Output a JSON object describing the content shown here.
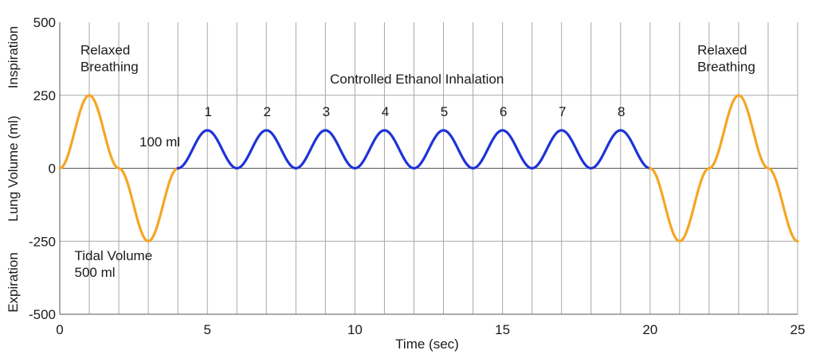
{
  "chart_data": {
    "type": "line",
    "xlabel": "Time (sec)",
    "ylabel": "Lung Volume (ml)",
    "ylabel_top": "Inspiration",
    "ylabel_bottom": "Expiration",
    "xlim": [
      0,
      25
    ],
    "ylim": [
      -500,
      500
    ],
    "x_ticks": [
      0,
      5,
      10,
      15,
      20,
      25
    ],
    "y_ticks": [
      500,
      250,
      0,
      -250,
      -500
    ],
    "vertical_grid_every": 1,
    "horizontal_grid": [
      250,
      0,
      -250
    ],
    "series": [
      {
        "color": "#f5a623",
        "x": [
          0,
          1,
          2,
          3,
          4
        ],
        "y": [
          0,
          250,
          0,
          -250,
          0
        ]
      },
      {
        "color": "#1f33d6",
        "x": [
          4,
          5,
          6,
          7,
          8,
          9,
          10,
          11,
          12,
          13,
          14,
          15,
          16,
          17,
          18,
          19,
          20
        ],
        "y": [
          0,
          130,
          0,
          130,
          0,
          130,
          0,
          130,
          0,
          130,
          0,
          130,
          0,
          130,
          0,
          130,
          0
        ]
      },
      {
        "color": "#f5a623",
        "x": [
          20,
          21,
          22,
          23,
          24,
          25
        ],
        "y": [
          0,
          -250,
          0,
          250,
          0,
          -250
        ]
      }
    ],
    "annotations": [
      {
        "id": "relaxed-left",
        "lines": [
          "Relaxed",
          "Breathing"
        ],
        "x": 0.7,
        "y": 390,
        "anchor": "start"
      },
      {
        "id": "controlled",
        "lines": [
          "Controlled Ethanol Inhalation"
        ],
        "x": 12.1,
        "y": 290,
        "anchor": "middle"
      },
      {
        "id": "hundred-ml",
        "lines": [
          "100 ml"
        ],
        "x": 2.7,
        "y": 75,
        "anchor": "start"
      },
      {
        "id": "tidal",
        "lines": [
          "Tidal Volume",
          "500 ml"
        ],
        "x": 0.5,
        "y": -315,
        "anchor": "start"
      },
      {
        "id": "relaxed-right",
        "lines": [
          "Relaxed",
          "Breathing"
        ],
        "x": 21.6,
        "y": 390,
        "anchor": "start"
      }
    ],
    "cycle_labels": {
      "labels": [
        "1",
        "2",
        "3",
        "4",
        "5",
        "6",
        "7",
        "8"
      ],
      "x": [
        5,
        7,
        9,
        11,
        13,
        15,
        17,
        19
      ],
      "y": 195
    }
  }
}
